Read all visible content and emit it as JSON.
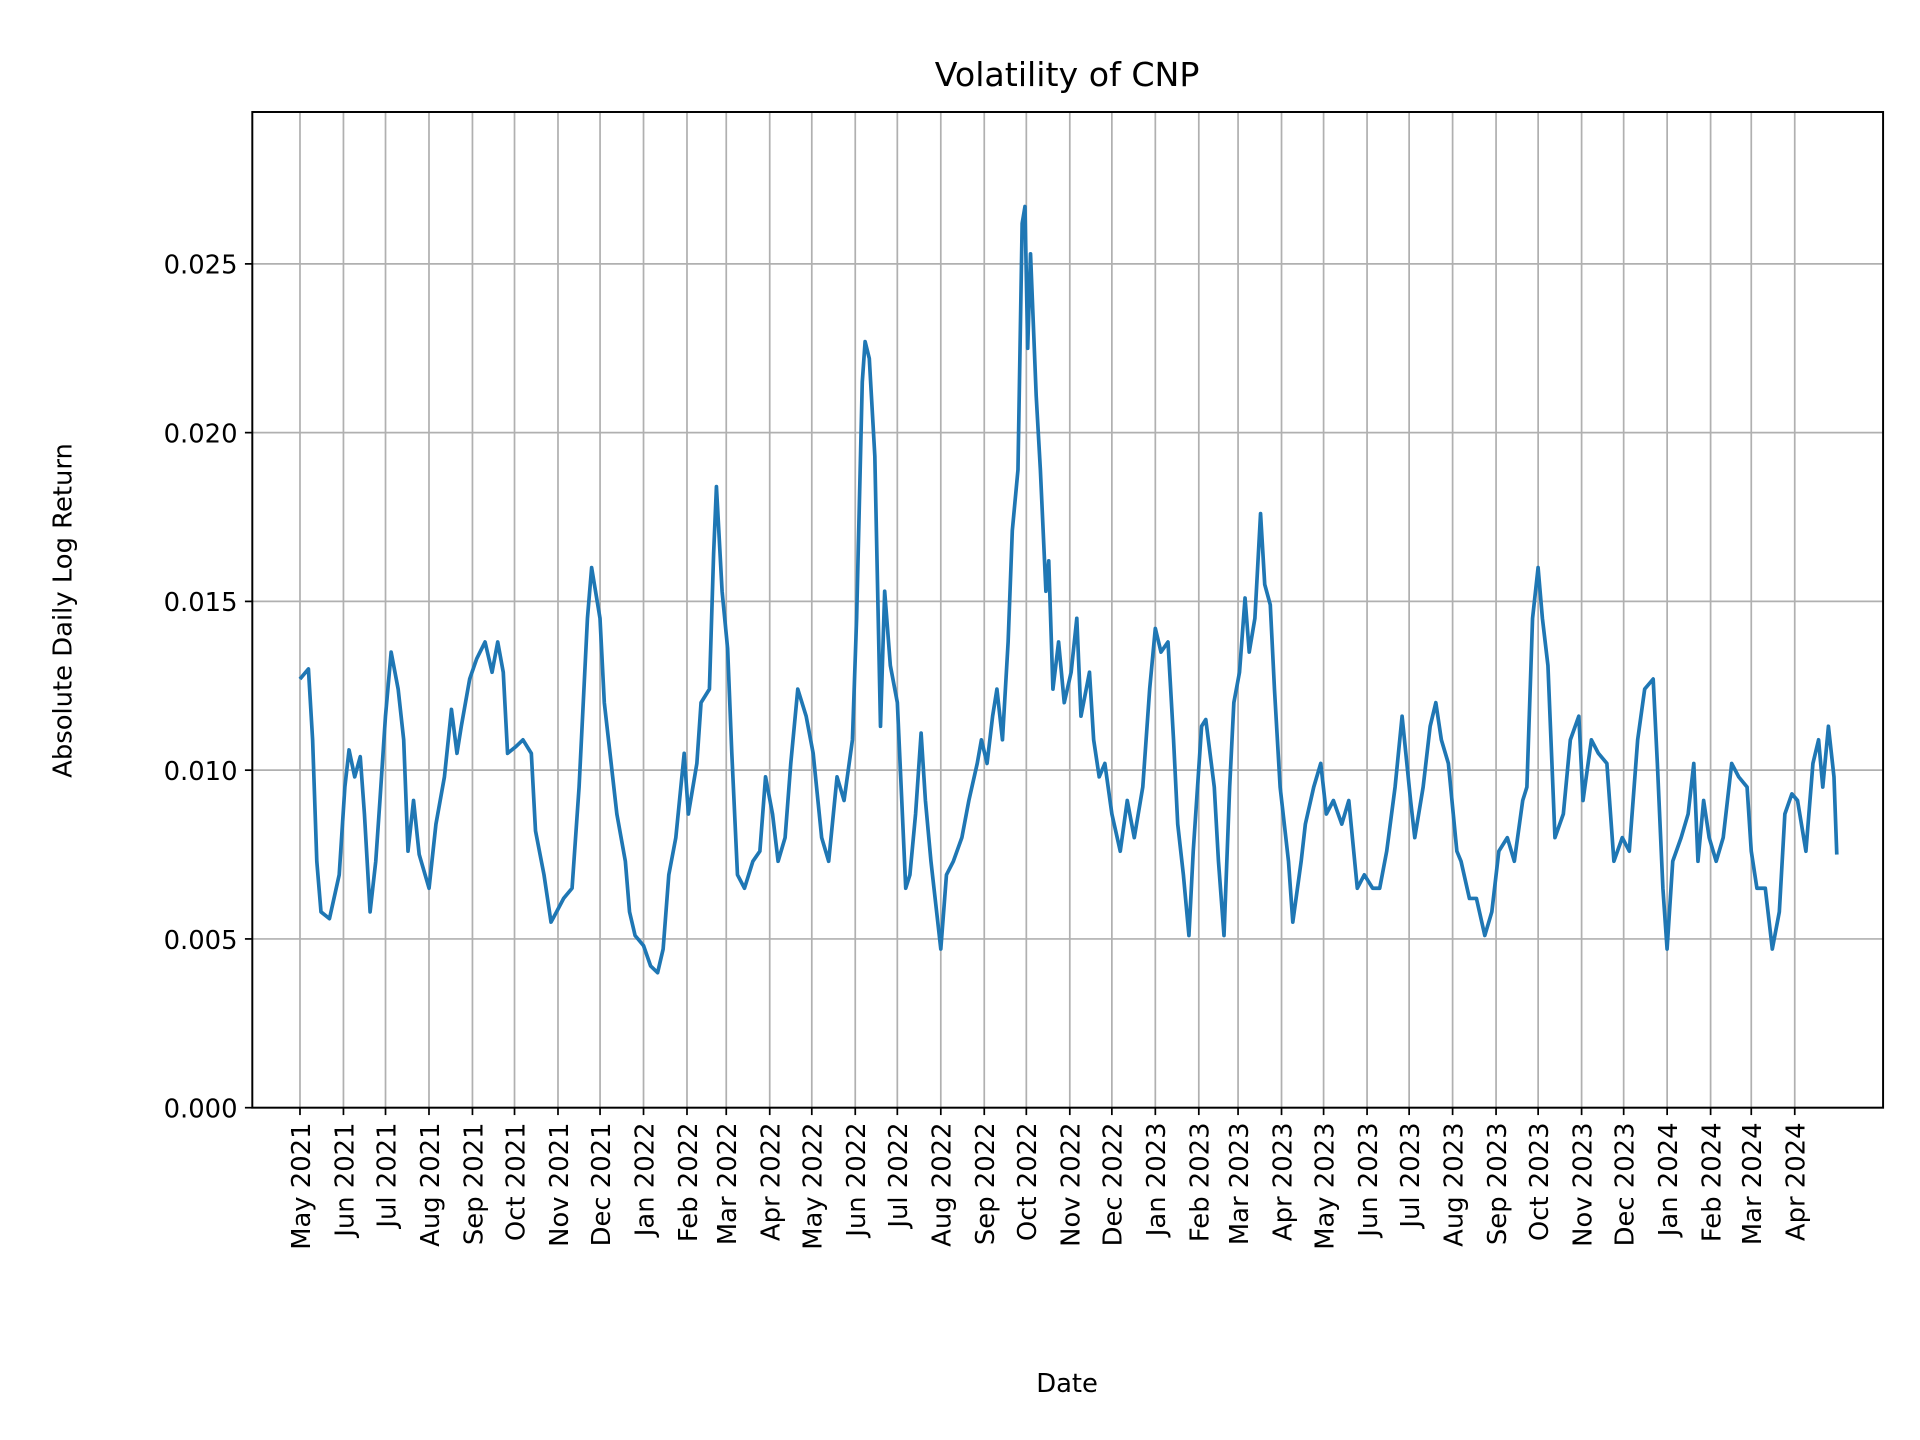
{
  "chart_data": {
    "type": "line",
    "title": "Volatility of CNP",
    "xlabel": "Date",
    "ylabel": "Absolute Daily Log Return",
    "ylim": [
      0,
      0.0295
    ],
    "xlim": [
      "2021-03-28",
      "2024-06-03"
    ],
    "grid": true,
    "line_color": "#1f77b4",
    "yticks": [
      0.0,
      0.005,
      0.01,
      0.015,
      0.02,
      0.025
    ],
    "ytick_labels": [
      "0.000",
      "0.005",
      "0.010",
      "0.015",
      "0.020",
      "0.025"
    ],
    "xticks": [
      "2021-05-01",
      "2021-06-01",
      "2021-07-01",
      "2021-08-01",
      "2021-09-01",
      "2021-10-01",
      "2021-11-01",
      "2021-12-01",
      "2022-01-01",
      "2022-02-01",
      "2022-03-01",
      "2022-04-01",
      "2022-05-01",
      "2022-06-01",
      "2022-07-01",
      "2022-08-01",
      "2022-09-01",
      "2022-10-01",
      "2022-11-01",
      "2022-12-01",
      "2023-01-01",
      "2023-02-01",
      "2023-03-01",
      "2023-04-01",
      "2023-05-01",
      "2023-06-01",
      "2023-07-01",
      "2023-08-01",
      "2023-09-01",
      "2023-10-01",
      "2023-11-01",
      "2023-12-01",
      "2024-01-01",
      "2024-02-01",
      "2024-03-01",
      "2024-04-01"
    ],
    "xtick_labels": [
      "May 2021",
      "Jun 2021",
      "Jul 2021",
      "Aug 2021",
      "Sep 2021",
      "Oct 2021",
      "Nov 2021",
      "Dec 2021",
      "Jan 2022",
      "Feb 2022",
      "Mar 2022",
      "Apr 2022",
      "May 2022",
      "Jun 2022",
      "Jul 2022",
      "Aug 2022",
      "Sep 2022",
      "Oct 2022",
      "Nov 2022",
      "Dec 2022",
      "Jan 2023",
      "Feb 2023",
      "Mar 2023",
      "Apr 2023",
      "May 2023",
      "Jun 2023",
      "Jul 2023",
      "Aug 2023",
      "Sep 2023",
      "Oct 2023",
      "Nov 2023",
      "Dec 2023",
      "Jan 2024",
      "Feb 2024",
      "Mar 2024",
      "Apr 2024"
    ],
    "series": [
      {
        "points": [
          [
            "2021-05-01",
            0.0127
          ],
          [
            "2021-05-07",
            0.013
          ],
          [
            "2021-05-10",
            0.0109
          ],
          [
            "2021-05-13",
            0.0073
          ],
          [
            "2021-05-16",
            0.0058
          ],
          [
            "2021-05-22",
            0.0056
          ],
          [
            "2021-05-29",
            0.0069
          ],
          [
            "2021-06-02",
            0.0095
          ],
          [
            "2021-06-05",
            0.0106
          ],
          [
            "2021-06-09",
            0.0098
          ],
          [
            "2021-06-13",
            0.0104
          ],
          [
            "2021-06-16",
            0.0087
          ],
          [
            "2021-06-20",
            0.0058
          ],
          [
            "2021-06-24",
            0.0073
          ],
          [
            "2021-06-27",
            0.0091
          ],
          [
            "2021-07-01",
            0.0116
          ],
          [
            "2021-07-05",
            0.0135
          ],
          [
            "2021-07-10",
            0.0124
          ],
          [
            "2021-07-14",
            0.0109
          ],
          [
            "2021-07-17",
            0.0076
          ],
          [
            "2021-07-21",
            0.0091
          ],
          [
            "2021-07-25",
            0.0075
          ],
          [
            "2021-08-01",
            0.0065
          ],
          [
            "2021-08-06",
            0.0084
          ],
          [
            "2021-08-12",
            0.0098
          ],
          [
            "2021-08-17",
            0.0118
          ],
          [
            "2021-08-21",
            0.0105
          ],
          [
            "2021-08-24",
            0.0113
          ],
          [
            "2021-08-30",
            0.0127
          ],
          [
            "2021-09-04",
            0.0133
          ],
          [
            "2021-09-10",
            0.0138
          ],
          [
            "2021-09-15",
            0.0129
          ],
          [
            "2021-09-19",
            0.0138
          ],
          [
            "2021-09-23",
            0.0129
          ],
          [
            "2021-09-26",
            0.0105
          ],
          [
            "2021-10-02",
            0.0107
          ],
          [
            "2021-10-07",
            0.0109
          ],
          [
            "2021-10-13",
            0.0105
          ],
          [
            "2021-10-16",
            0.0082
          ],
          [
            "2021-10-22",
            0.0069
          ],
          [
            "2021-10-27",
            0.0055
          ],
          [
            "2021-10-31",
            0.0058
          ],
          [
            "2021-11-05",
            0.0062
          ],
          [
            "2021-11-11",
            0.0065
          ],
          [
            "2021-11-16",
            0.0095
          ],
          [
            "2021-11-22",
            0.0145
          ],
          [
            "2021-11-25",
            0.016
          ],
          [
            "2021-12-01",
            0.0145
          ],
          [
            "2021-12-04",
            0.012
          ],
          [
            "2021-12-10",
            0.0098
          ],
          [
            "2021-12-13",
            0.0087
          ],
          [
            "2021-12-19",
            0.0073
          ],
          [
            "2021-12-22",
            0.0058
          ],
          [
            "2021-12-26",
            0.0051
          ],
          [
            "2022-01-01",
            0.0048
          ],
          [
            "2022-01-06",
            0.0042
          ],
          [
            "2022-01-11",
            0.004
          ],
          [
            "2022-01-15",
            0.0047
          ],
          [
            "2022-01-19",
            0.0069
          ],
          [
            "2022-01-24",
            0.008
          ],
          [
            "2022-01-30",
            0.0105
          ],
          [
            "2022-02-02",
            0.0087
          ],
          [
            "2022-02-08",
            0.0102
          ],
          [
            "2022-02-11",
            0.012
          ],
          [
            "2022-02-17",
            0.0124
          ],
          [
            "2022-02-20",
            0.0164
          ],
          [
            "2022-02-22",
            0.0184
          ],
          [
            "2022-02-26",
            0.0153
          ],
          [
            "2022-03-02",
            0.0136
          ],
          [
            "2022-03-05",
            0.0105
          ],
          [
            "2022-03-09",
            0.0069
          ],
          [
            "2022-03-14",
            0.0065
          ],
          [
            "2022-03-20",
            0.0073
          ],
          [
            "2022-03-25",
            0.0076
          ],
          [
            "2022-03-29",
            0.0098
          ],
          [
            "2022-04-03",
            0.0087
          ],
          [
            "2022-04-07",
            0.0073
          ],
          [
            "2022-04-12",
            0.008
          ],
          [
            "2022-04-16",
            0.0102
          ],
          [
            "2022-04-21",
            0.0124
          ],
          [
            "2022-04-27",
            0.0116
          ],
          [
            "2022-05-02",
            0.0105
          ],
          [
            "2022-05-08",
            0.008
          ],
          [
            "2022-05-13",
            0.0073
          ],
          [
            "2022-05-19",
            0.0098
          ],
          [
            "2022-05-24",
            0.0091
          ],
          [
            "2022-05-30",
            0.0109
          ],
          [
            "2022-06-02",
            0.0145
          ],
          [
            "2022-06-06",
            0.0215
          ],
          [
            "2022-06-08",
            0.0227
          ],
          [
            "2022-06-11",
            0.0222
          ],
          [
            "2022-06-15",
            0.0193
          ],
          [
            "2022-06-19",
            0.0113
          ],
          [
            "2022-06-22",
            0.0153
          ],
          [
            "2022-06-26",
            0.0131
          ],
          [
            "2022-07-01",
            0.012
          ],
          [
            "2022-07-07",
            0.0065
          ],
          [
            "2022-07-10",
            0.0069
          ],
          [
            "2022-07-14",
            0.0087
          ],
          [
            "2022-07-18",
            0.0111
          ],
          [
            "2022-07-21",
            0.0091
          ],
          [
            "2022-07-25",
            0.0073
          ],
          [
            "2022-08-01",
            0.0047
          ],
          [
            "2022-08-05",
            0.0069
          ],
          [
            "2022-08-10",
            0.0073
          ],
          [
            "2022-08-16",
            0.008
          ],
          [
            "2022-08-21",
            0.0091
          ],
          [
            "2022-08-27",
            0.0102
          ],
          [
            "2022-08-30",
            0.0109
          ],
          [
            "2022-09-03",
            0.0102
          ],
          [
            "2022-09-07",
            0.0116
          ],
          [
            "2022-09-10",
            0.0124
          ],
          [
            "2022-09-14",
            0.0109
          ],
          [
            "2022-09-18",
            0.0138
          ],
          [
            "2022-09-21",
            0.0171
          ],
          [
            "2022-09-25",
            0.0189
          ],
          [
            "2022-09-28",
            0.0262
          ],
          [
            "2022-09-30",
            0.0267
          ],
          [
            "2022-10-02",
            0.0225
          ],
          [
            "2022-10-04",
            0.0253
          ],
          [
            "2022-10-08",
            0.0211
          ],
          [
            "2022-10-11",
            0.0189
          ],
          [
            "2022-10-15",
            0.0153
          ],
          [
            "2022-10-17",
            0.0162
          ],
          [
            "2022-10-20",
            0.0124
          ],
          [
            "2022-10-24",
            0.0138
          ],
          [
            "2022-10-28",
            0.012
          ],
          [
            "2022-11-02",
            0.0129
          ],
          [
            "2022-11-06",
            0.0145
          ],
          [
            "2022-11-09",
            0.0116
          ],
          [
            "2022-11-15",
            0.0129
          ],
          [
            "2022-11-18",
            0.0109
          ],
          [
            "2022-11-22",
            0.0098
          ],
          [
            "2022-11-26",
            0.0102
          ],
          [
            "2022-12-01",
            0.0087
          ],
          [
            "2022-12-07",
            0.0076
          ],
          [
            "2022-12-12",
            0.0091
          ],
          [
            "2022-12-17",
            0.008
          ],
          [
            "2022-12-23",
            0.0095
          ],
          [
            "2022-12-28",
            0.0124
          ],
          [
            "2023-01-01",
            0.0142
          ],
          [
            "2023-01-05",
            0.0135
          ],
          [
            "2023-01-10",
            0.0138
          ],
          [
            "2023-01-14",
            0.0109
          ],
          [
            "2023-01-17",
            0.0084
          ],
          [
            "2023-01-21",
            0.0069
          ],
          [
            "2023-01-25",
            0.0051
          ],
          [
            "2023-01-28",
            0.0076
          ],
          [
            "2023-02-03",
            0.0113
          ],
          [
            "2023-02-06",
            0.0115
          ],
          [
            "2023-02-12",
            0.0095
          ],
          [
            "2023-02-15",
            0.0073
          ],
          [
            "2023-02-19",
            0.0051
          ],
          [
            "2023-02-23",
            0.0095
          ],
          [
            "2023-02-26",
            0.012
          ],
          [
            "2023-03-02",
            0.0129
          ],
          [
            "2023-03-06",
            0.0151
          ],
          [
            "2023-03-09",
            0.0135
          ],
          [
            "2023-03-13",
            0.0145
          ],
          [
            "2023-03-17",
            0.0176
          ],
          [
            "2023-03-20",
            0.0155
          ],
          [
            "2023-03-24",
            0.0149
          ],
          [
            "2023-03-27",
            0.0124
          ],
          [
            "2023-03-31",
            0.0095
          ],
          [
            "2023-04-06",
            0.0073
          ],
          [
            "2023-04-09",
            0.0055
          ],
          [
            "2023-04-15",
            0.0073
          ],
          [
            "2023-04-18",
            0.0084
          ],
          [
            "2023-04-24",
            0.0095
          ],
          [
            "2023-04-29",
            0.0102
          ],
          [
            "2023-05-03",
            0.0087
          ],
          [
            "2023-05-08",
            0.0091
          ],
          [
            "2023-05-14",
            0.0084
          ],
          [
            "2023-05-19",
            0.0091
          ],
          [
            "2023-05-25",
            0.0065
          ],
          [
            "2023-05-30",
            0.0069
          ],
          [
            "2023-06-05",
            0.0065
          ],
          [
            "2023-06-10",
            0.0065
          ],
          [
            "2023-06-15",
            0.0076
          ],
          [
            "2023-06-21",
            0.0095
          ],
          [
            "2023-06-26",
            0.0116
          ],
          [
            "2023-07-02",
            0.0091
          ],
          [
            "2023-07-05",
            0.008
          ],
          [
            "2023-07-11",
            0.0095
          ],
          [
            "2023-07-16",
            0.0113
          ],
          [
            "2023-07-20",
            0.012
          ],
          [
            "2023-07-24",
            0.0109
          ],
          [
            "2023-07-29",
            0.0102
          ],
          [
            "2023-08-04",
            0.0076
          ],
          [
            "2023-08-07",
            0.0073
          ],
          [
            "2023-08-13",
            0.0062
          ],
          [
            "2023-08-18",
            0.0062
          ],
          [
            "2023-08-24",
            0.0051
          ],
          [
            "2023-08-29",
            0.0058
          ],
          [
            "2023-09-03",
            0.0076
          ],
          [
            "2023-09-09",
            0.008
          ],
          [
            "2023-09-14",
            0.0073
          ],
          [
            "2023-09-20",
            0.0091
          ],
          [
            "2023-09-23",
            0.0095
          ],
          [
            "2023-09-27",
            0.0145
          ],
          [
            "2023-10-01",
            0.016
          ],
          [
            "2023-10-04",
            0.0145
          ],
          [
            "2023-10-08",
            0.0131
          ],
          [
            "2023-10-13",
            0.008
          ],
          [
            "2023-10-19",
            0.0087
          ],
          [
            "2023-10-24",
            0.0109
          ],
          [
            "2023-10-30",
            0.0116
          ],
          [
            "2023-11-02",
            0.0091
          ],
          [
            "2023-11-08",
            0.0109
          ],
          [
            "2023-11-13",
            0.0105
          ],
          [
            "2023-11-19",
            0.0102
          ],
          [
            "2023-11-24",
            0.0073
          ],
          [
            "2023-11-30",
            0.008
          ],
          [
            "2023-12-05",
            0.0076
          ],
          [
            "2023-12-11",
            0.0109
          ],
          [
            "2023-12-16",
            0.0124
          ],
          [
            "2023-12-22",
            0.0127
          ],
          [
            "2023-12-25",
            0.0102
          ],
          [
            "2023-12-29",
            0.0065
          ],
          [
            "2024-01-01",
            0.0047
          ],
          [
            "2024-01-05",
            0.0073
          ],
          [
            "2024-01-11",
            0.008
          ],
          [
            "2024-01-16",
            0.0087
          ],
          [
            "2024-01-20",
            0.0102
          ],
          [
            "2024-01-23",
            0.0073
          ],
          [
            "2024-01-27",
            0.0091
          ],
          [
            "2024-01-31",
            0.008
          ],
          [
            "2024-02-05",
            0.0073
          ],
          [
            "2024-02-10",
            0.008
          ],
          [
            "2024-02-16",
            0.0102
          ],
          [
            "2024-02-21",
            0.0098
          ],
          [
            "2024-02-27",
            0.0095
          ],
          [
            "2024-03-01",
            0.0076
          ],
          [
            "2024-03-05",
            0.0065
          ],
          [
            "2024-03-11",
            0.0065
          ],
          [
            "2024-03-16",
            0.0047
          ],
          [
            "2024-03-21",
            0.0058
          ],
          [
            "2024-03-25",
            0.0087
          ],
          [
            "2024-03-30",
            0.0093
          ],
          [
            "2024-04-03",
            0.0091
          ],
          [
            "2024-04-09",
            0.0076
          ],
          [
            "2024-04-14",
            0.0102
          ],
          [
            "2024-04-18",
            0.0109
          ],
          [
            "2024-04-21",
            0.0095
          ],
          [
            "2024-04-25",
            0.0113
          ],
          [
            "2024-04-29",
            0.0098
          ],
          [
            "2024-05-01",
            0.0075
          ]
        ]
      }
    ]
  }
}
